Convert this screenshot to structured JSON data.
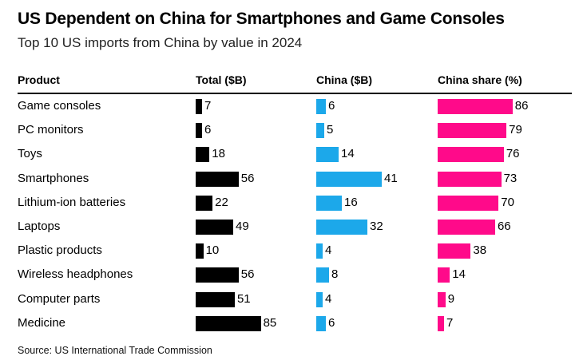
{
  "title": "US Dependent on China for Smartphones and Game Consoles",
  "subtitle": "Top 10 US imports from China by value in 2024",
  "source": "Source: US International Trade Commission",
  "colors": {
    "total": "#000000",
    "china": "#1ca8ea",
    "share": "#ff0a8a"
  },
  "chart_data": {
    "type": "table",
    "columns": [
      "Product",
      "Total ($B)",
      "China ($B)",
      "China share (%)"
    ],
    "categories": [
      "Game consoles",
      "PC monitors",
      "Toys",
      "Smartphones",
      "Lithium-ion batteries",
      "Laptops",
      "Plastic products",
      "Wireless headphones",
      "Computer parts",
      "Medicine"
    ],
    "series": [
      {
        "name": "Total ($B)",
        "values": [
          7,
          6,
          18,
          56,
          22,
          49,
          10,
          56,
          51,
          85
        ]
      },
      {
        "name": "China ($B)",
        "values": [
          6,
          5,
          14,
          41,
          16,
          32,
          4,
          8,
          4,
          6
        ]
      },
      {
        "name": "China share (%)",
        "values": [
          86,
          79,
          76,
          73,
          70,
          66,
          38,
          14,
          9,
          7
        ]
      }
    ]
  }
}
